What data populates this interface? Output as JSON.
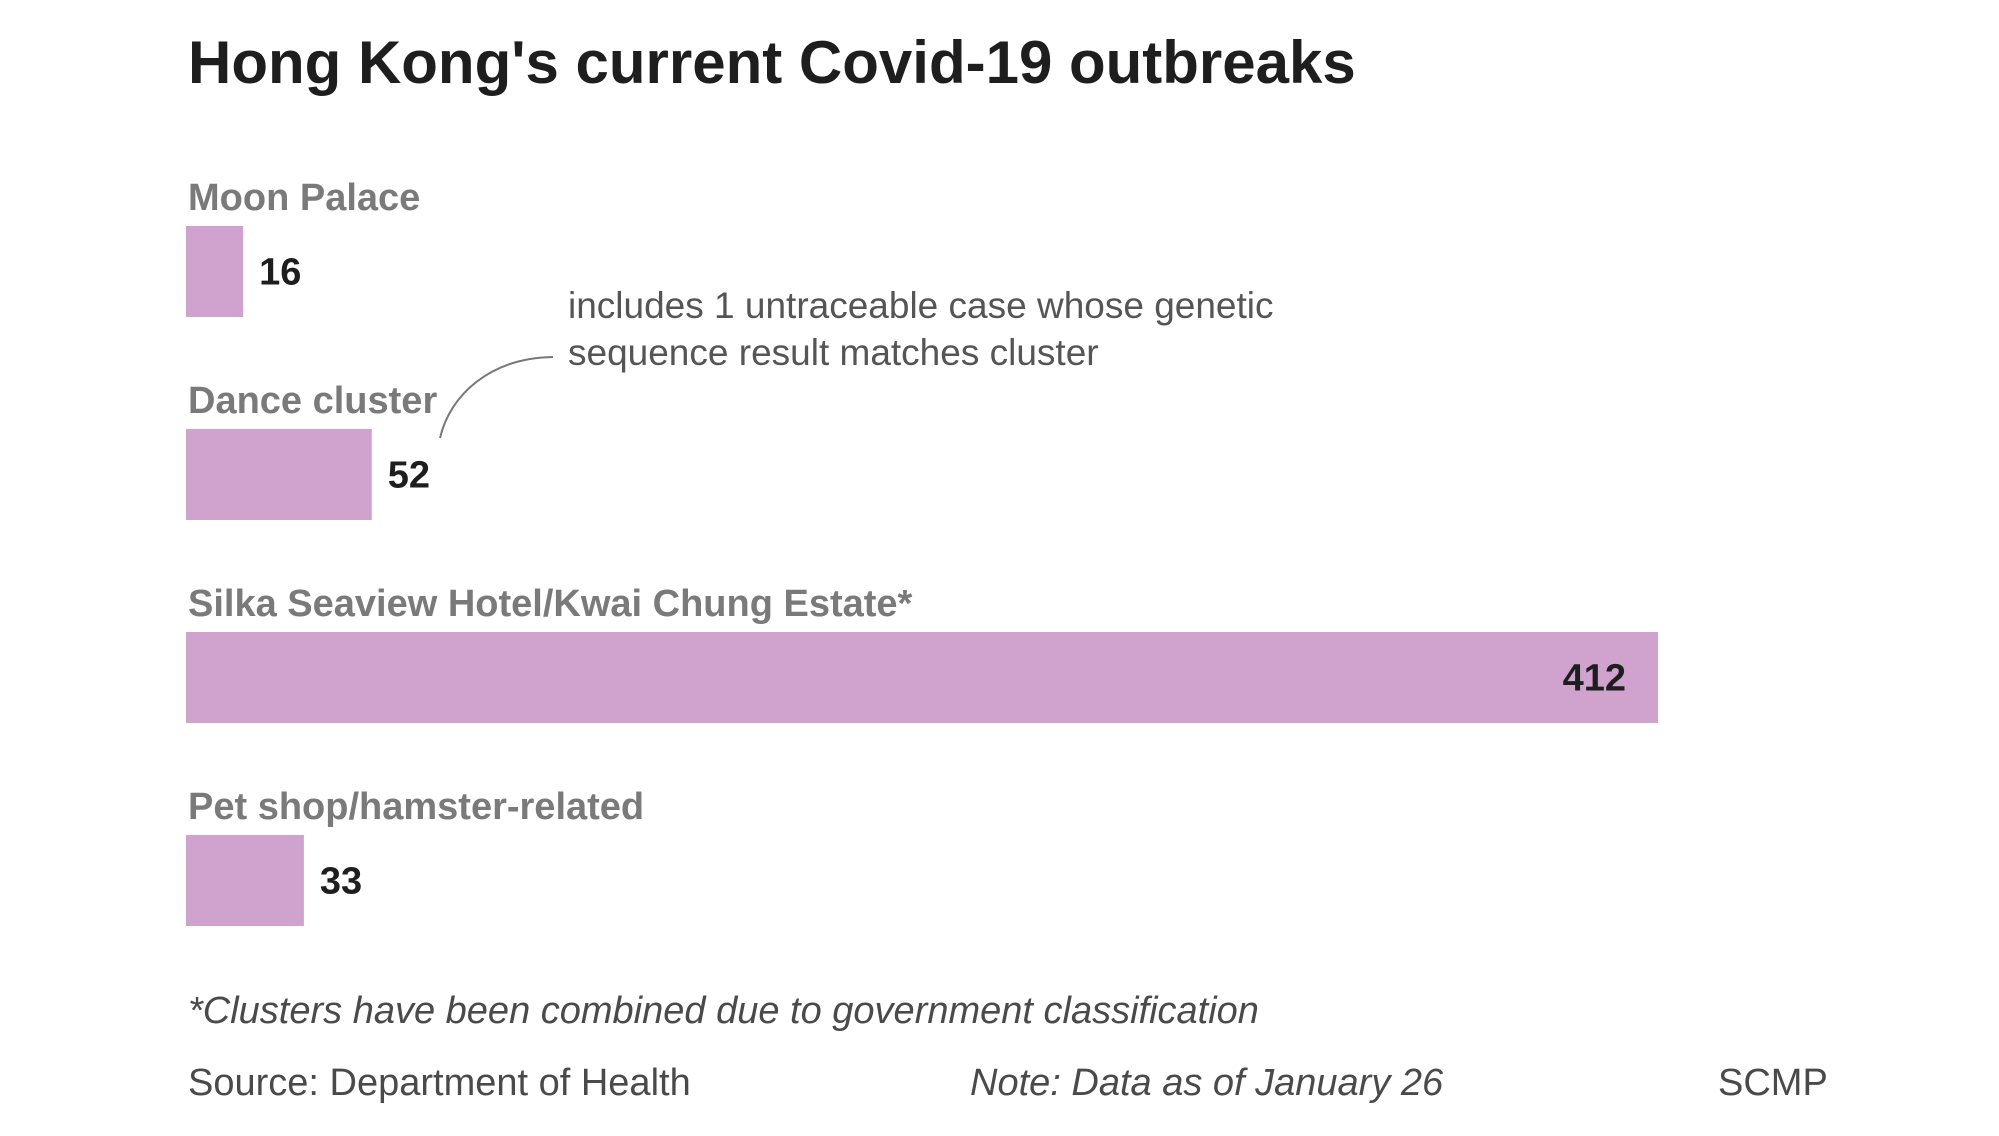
{
  "chart_data": {
    "type": "bar",
    "orientation": "horizontal",
    "title": "Hong Kong's current Covid-19 outbreaks",
    "categories": [
      "Moon Palace",
      "Dance cluster",
      "Silka Seaview Hotel/Kwai Chung Estate*",
      "Pet shop/hamster-related"
    ],
    "values": [
      16,
      52,
      412,
      33
    ],
    "value_labels": [
      "16",
      "52",
      "412",
      "33"
    ],
    "xlim": [
      0,
      412
    ],
    "grid": false,
    "bar_color": "#cfa3ce",
    "annotations": [
      {
        "target": "Dance cluster",
        "lines": [
          "includes 1 untraceable case whose genetic",
          "sequence result matches cluster"
        ]
      }
    ]
  },
  "footer": {
    "footnote": "*Clusters have been combined due to government classification",
    "source": "Source: Department of Health",
    "note": "Note: Data as of January 26",
    "credit": "SCMP"
  }
}
